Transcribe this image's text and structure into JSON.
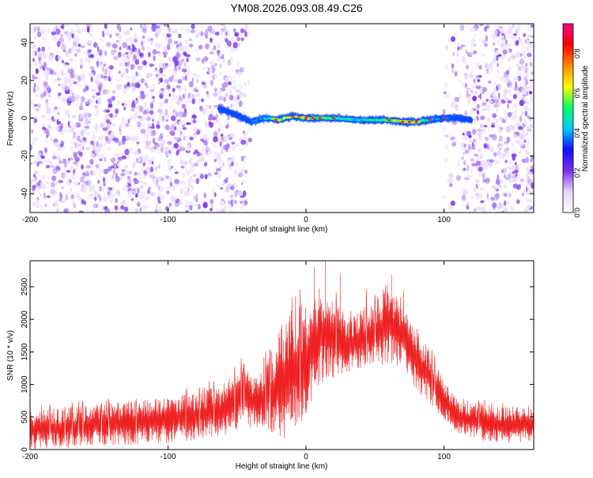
{
  "title": "YM08.2026.093.08.49.C26",
  "colors": {
    "frame": "#000000",
    "snr_line": "#ee2222",
    "background": "#ffffff"
  },
  "chart_data": [
    {
      "type": "heatmap",
      "name": "spectrogram",
      "title": "YM08.2026.093.08.49.C26",
      "xlabel": "Height of straight line (km)",
      "ylabel": "Frequency (Hz)",
      "xlim": [
        -200,
        165
      ],
      "ylim": [
        -50,
        50
      ],
      "x_ticks": [
        -200,
        -100,
        0,
        100
      ],
      "y_ticks": [
        -40,
        -20,
        0,
        20,
        40
      ],
      "colorbar": {
        "label": "Normalized spectral amplitude",
        "range": [
          0.0,
          0.95
        ],
        "ticks": [
          "0.0",
          "0.2",
          "0.4",
          "0.6",
          "0.8"
        ],
        "tick_values": [
          0.0,
          0.2,
          0.4,
          0.6,
          0.8
        ],
        "colormap": [
          "#ffffff",
          "#e6d5fb",
          "#7a2fef",
          "#1010ff",
          "#00ccff",
          "#00ff66",
          "#ffff00",
          "#ff8800",
          "#ff0000",
          "#ff0088"
        ]
      },
      "noise_regions_km": [
        [
          -200,
          -40
        ],
        [
          100,
          165
        ]
      ],
      "signal_track": {
        "x_km": [
          -63,
          -55,
          -45,
          -40,
          -30,
          -20,
          -10,
          0,
          20,
          40,
          60,
          70,
          80,
          90,
          100,
          110,
          120
        ],
        "frequency_hz": [
          5,
          3,
          0,
          -2,
          0,
          -1,
          1,
          0,
          0,
          -1,
          -1,
          -2,
          -2,
          -1,
          0,
          0,
          -1
        ],
        "amplitude": [
          0.45,
          0.4,
          0.45,
          0.5,
          0.55,
          0.85,
          0.8,
          0.9,
          0.7,
          0.65,
          0.75,
          0.9,
          0.85,
          0.6,
          0.55,
          0.4,
          0.3
        ]
      }
    },
    {
      "type": "line",
      "name": "snr",
      "xlabel": "Height of straight line (km)",
      "ylabel": "SNR (10 * v/v)",
      "xlim": [
        -200,
        165
      ],
      "ylim": [
        0,
        2900
      ],
      "x_ticks": [
        -200,
        -100,
        0,
        100
      ],
      "y_ticks": [
        0,
        500,
        1000,
        1500,
        2000,
        2500
      ],
      "series": [
        {
          "name": "SNR",
          "envelope_x_km": [
            -200,
            -150,
            -100,
            -60,
            -45,
            -35,
            -20,
            -10,
            0,
            10,
            20,
            30,
            40,
            50,
            60,
            70,
            80,
            90,
            100,
            110,
            120,
            140,
            165
          ],
          "envelope_upper": [
            600,
            700,
            800,
            1000,
            1300,
            1100,
            1800,
            2300,
            2200,
            2550,
            2300,
            2000,
            2150,
            2300,
            2600,
            2300,
            1900,
            1500,
            1100,
            800,
            750,
            650,
            700
          ],
          "envelope_lower": [
            0,
            50,
            100,
            200,
            350,
            300,
            150,
            200,
            500,
            1000,
            1100,
            1200,
            1200,
            1300,
            1300,
            1200,
            900,
            700,
            400,
            250,
            150,
            100,
            100
          ],
          "spikes": [
            {
              "x": -10,
              "y": 1890
            },
            {
              "x": 6,
              "y": 2800
            },
            {
              "x": 14,
              "y": 2900
            },
            {
              "x": 25,
              "y": 2700
            },
            {
              "x": 62,
              "y": 2680
            }
          ]
        }
      ]
    }
  ]
}
